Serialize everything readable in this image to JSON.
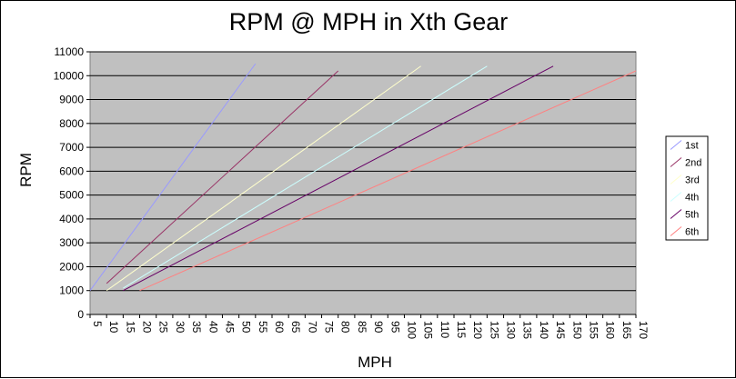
{
  "chart_data": {
    "type": "line",
    "title": "RPM @ MPH in Xth Gear",
    "xlabel": "MPH",
    "ylabel": "RPM",
    "xlim": [
      5,
      170
    ],
    "ylim": [
      0,
      11000
    ],
    "x_ticks": [
      5,
      10,
      15,
      20,
      25,
      30,
      35,
      40,
      45,
      50,
      55,
      60,
      65,
      70,
      75,
      80,
      85,
      90,
      95,
      100,
      105,
      110,
      115,
      120,
      125,
      130,
      135,
      140,
      145,
      150,
      155,
      160,
      165,
      170
    ],
    "y_ticks": [
      0,
      1000,
      2000,
      3000,
      4000,
      5000,
      6000,
      7000,
      8000,
      9000,
      10000,
      11000
    ],
    "grid": "horizontal",
    "plot_background": "#c0c0c0",
    "legend_position": "right",
    "series": [
      {
        "name": "1st",
        "color": "#9999ff",
        "points": [
          [
            5,
            1000
          ],
          [
            55,
            10500
          ]
        ]
      },
      {
        "name": "2nd",
        "color": "#993366",
        "points": [
          [
            10,
            1300
          ],
          [
            80,
            10200
          ]
        ]
      },
      {
        "name": "3rd",
        "color": "#ffffcc",
        "points": [
          [
            10,
            1000
          ],
          [
            105,
            10400
          ]
        ]
      },
      {
        "name": "4th",
        "color": "#ccffff",
        "points": [
          [
            15,
            1100
          ],
          [
            125,
            10400
          ]
        ]
      },
      {
        "name": "5th",
        "color": "#660066",
        "points": [
          [
            15,
            1000
          ],
          [
            145,
            10400
          ]
        ]
      },
      {
        "name": "6th",
        "color": "#ff8080",
        "points": [
          [
            20,
            1000
          ],
          [
            170,
            10200
          ]
        ]
      }
    ]
  }
}
